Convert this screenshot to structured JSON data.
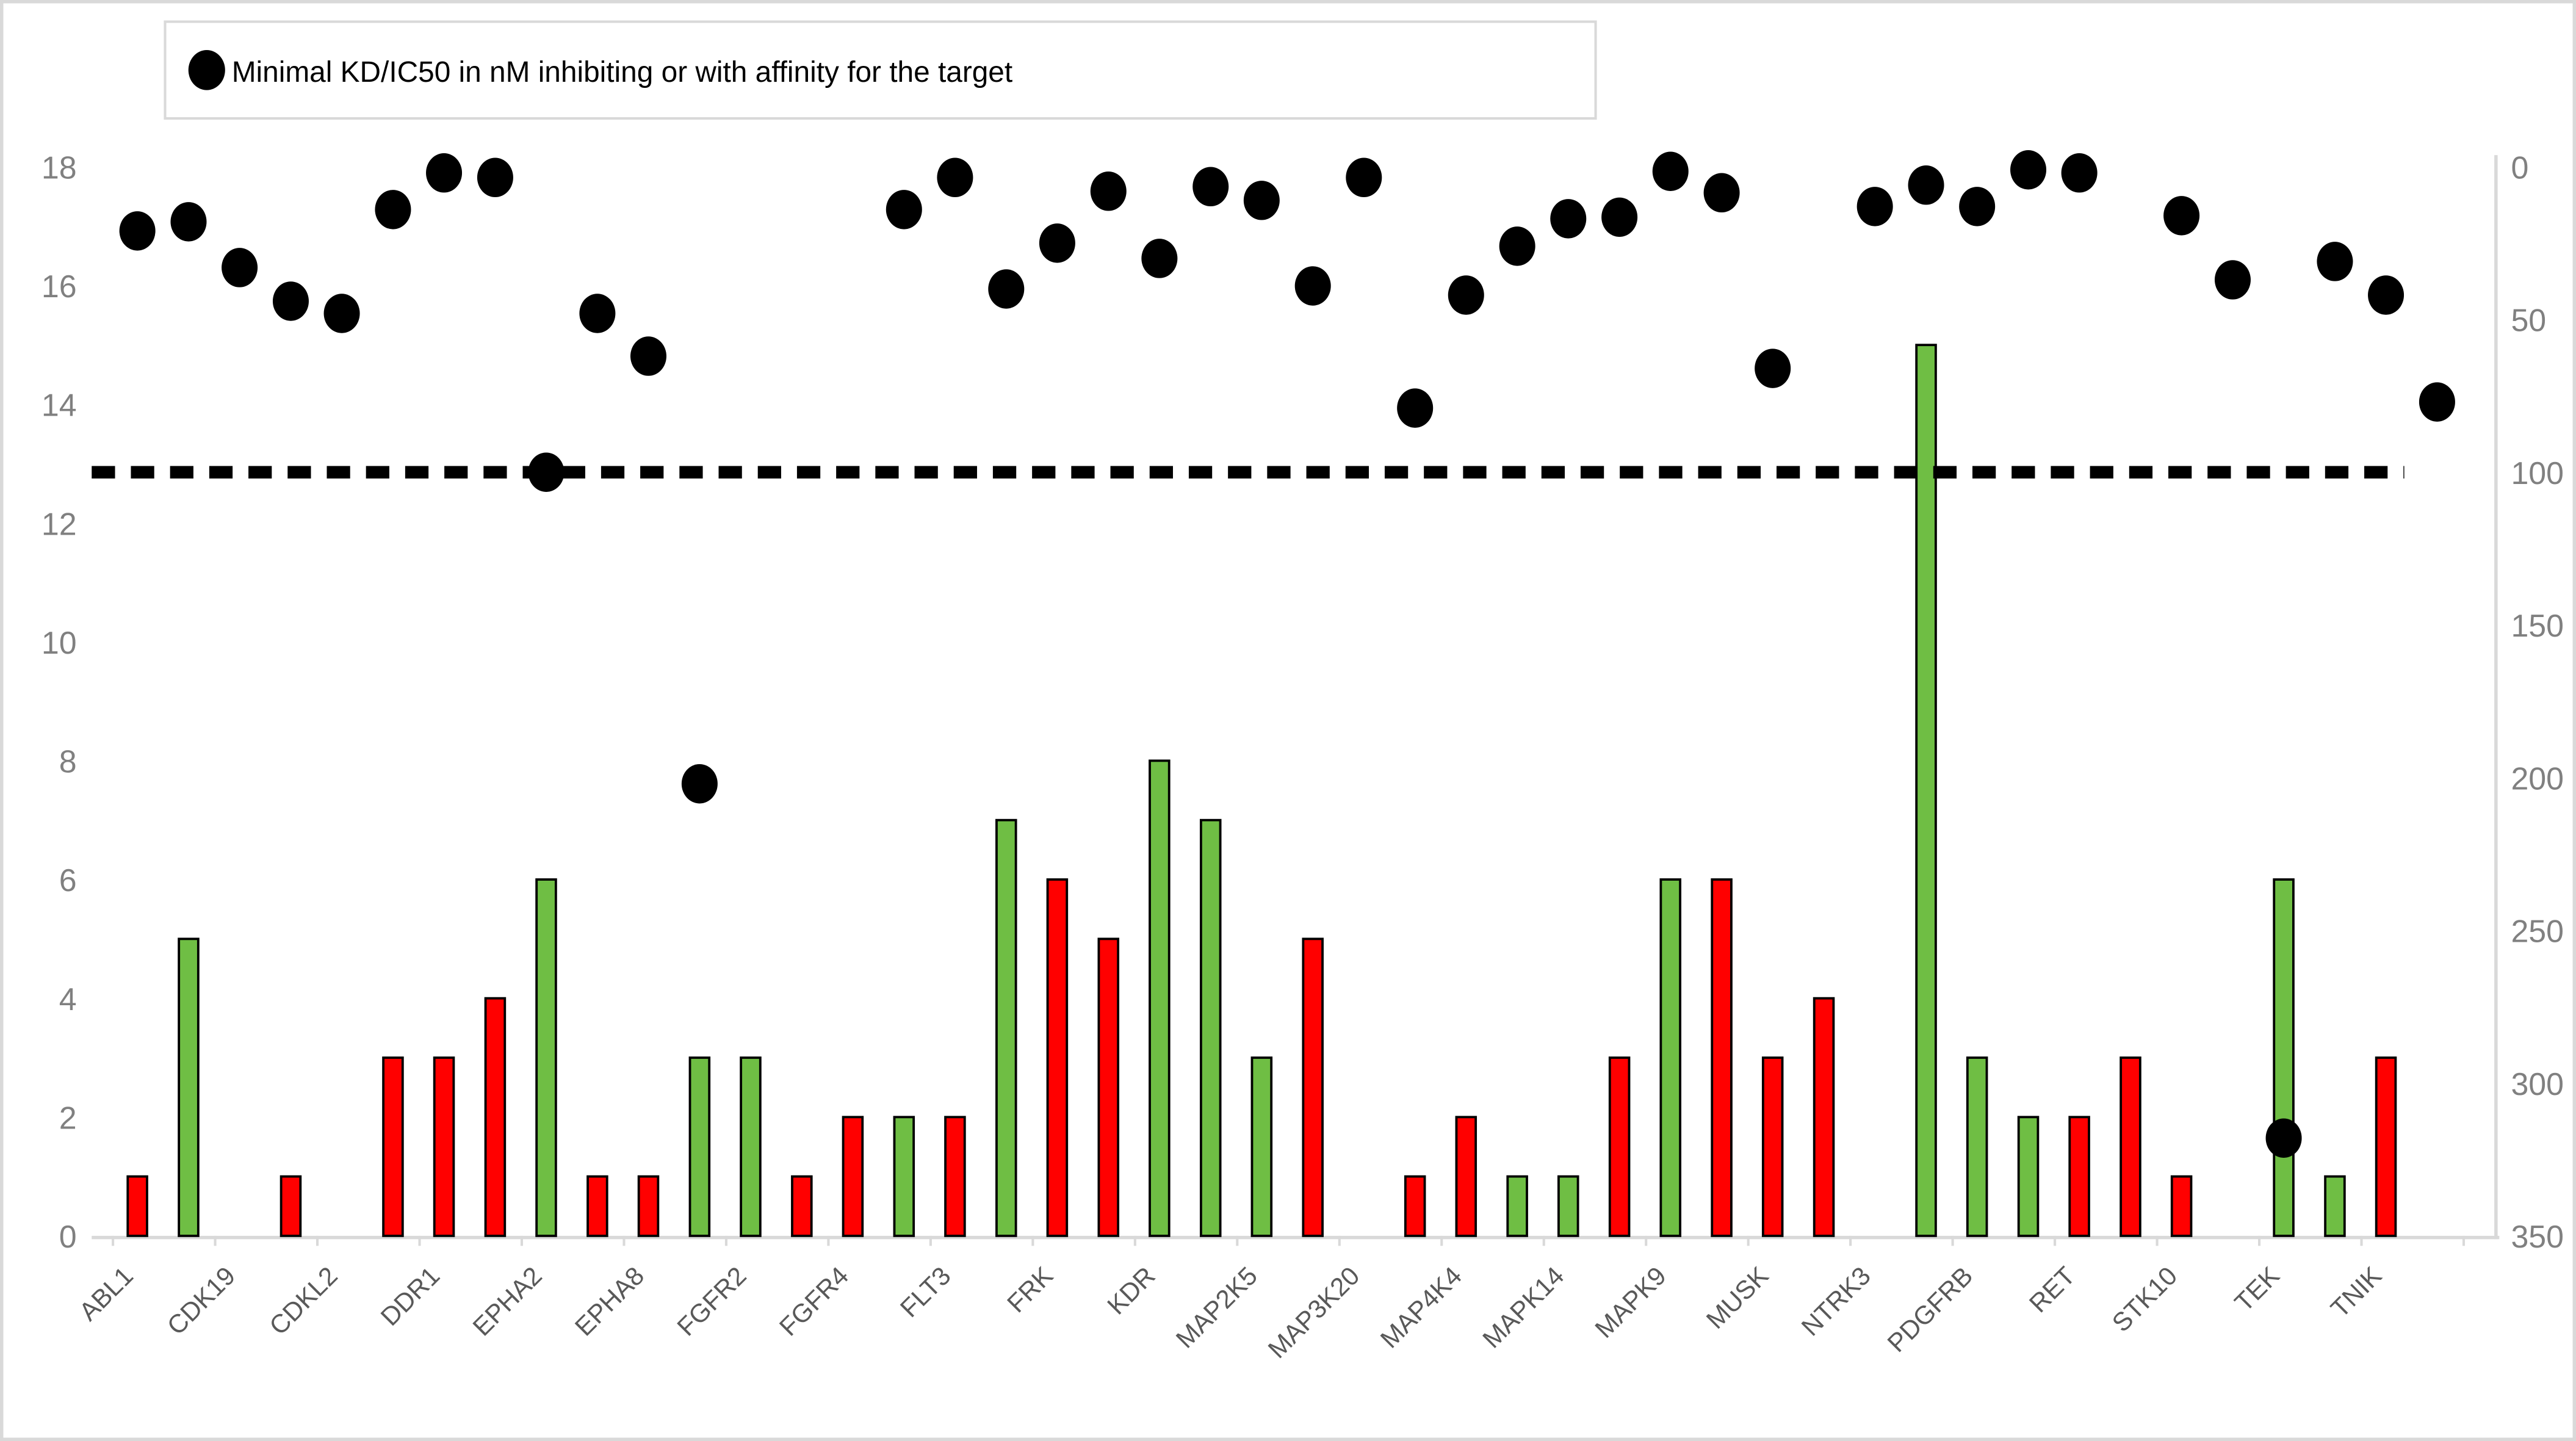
{
  "legend": {
    "marker": "filled-circle",
    "marker_color": "#000000",
    "label": "Minimal KD/IC50 in nM inhibiting or with affinity for  the target"
  },
  "left_axis": {
    "ticks": [
      "0",
      "2",
      "4",
      "6",
      "8",
      "10",
      "12",
      "14",
      "16",
      "18"
    ],
    "min": 0,
    "max": 18,
    "text_color": "#808080"
  },
  "right_axis": {
    "ticks": [
      "0",
      "50",
      "100",
      "150",
      "200",
      "250",
      "300",
      "350"
    ],
    "min": 0,
    "max": 350,
    "inverted": true,
    "text_color": "#808080"
  },
  "reference_line": {
    "value_nM": 100,
    "style": "dashed",
    "color": "#000000"
  },
  "colors": {
    "bar_red": "#FF0000",
    "bar_green": "#6FBE44",
    "bar_border": "#000000",
    "dot": "#000000",
    "axis_line": "#D9D9D9",
    "category_label": "#595959",
    "chart_border": "#D9D9D9"
  },
  "chart_data": {
    "type": "bar",
    "note": "clustered bars (left axis, 0-18) with overlaid scatter dots (right axis nM, 0 top - 350 bottom, inverted); dashed reference line at 100 nM",
    "categories": [
      "ABL1",
      "CDK19",
      "CDKL2",
      "DDR1",
      "EPHA2",
      "EPHA8",
      "FGFR2",
      "FGFR4",
      "FLT3",
      "FRK",
      "KDR",
      "MAP2K5",
      "MAP3K20",
      "MAP4K4",
      "MAPK14",
      "MAPK9",
      "MUSK",
      "NTRK3",
      "PDGFRB",
      "RET",
      "STK10",
      "TEK",
      "TNIK"
    ],
    "bars_slot1": [
      {
        "color": "red",
        "value": 1
      },
      null,
      null,
      {
        "color": "red",
        "value": 3
      },
      {
        "color": "green",
        "value": 6
      },
      {
        "color": "red",
        "value": 1
      },
      {
        "color": "green",
        "value": 3
      },
      {
        "color": "red",
        "value": 2
      },
      {
        "color": "red",
        "value": 2
      },
      {
        "color": "red",
        "value": 6
      },
      {
        "color": "green",
        "value": 8
      },
      {
        "color": "green",
        "value": 3
      },
      null,
      {
        "color": "red",
        "value": 2
      },
      {
        "color": "green",
        "value": 1
      },
      {
        "color": "green",
        "value": 6
      },
      {
        "color": "red",
        "value": 3
      },
      null,
      {
        "color": "green",
        "value": 3
      },
      {
        "color": "red",
        "value": 2
      },
      {
        "color": "red",
        "value": 1
      },
      {
        "color": "green",
        "value": 6
      },
      {
        "color": "red",
        "value": 3
      }
    ],
    "bars_slot2": [
      {
        "color": "green",
        "value": 5
      },
      {
        "color": "red",
        "value": 1
      },
      {
        "color": "red",
        "value": 3
      },
      {
        "color": "red",
        "value": 4
      },
      {
        "color": "red",
        "value": 1
      },
      {
        "color": "green",
        "value": 3
      },
      {
        "color": "red",
        "value": 1
      },
      {
        "color": "green",
        "value": 2
      },
      {
        "color": "green",
        "value": 7
      },
      {
        "color": "red",
        "value": 5
      },
      {
        "color": "green",
        "value": 7
      },
      {
        "color": "red",
        "value": 5
      },
      {
        "color": "red",
        "value": 1
      },
      {
        "color": "green",
        "value": 1
      },
      {
        "color": "red",
        "value": 3
      },
      {
        "color": "red",
        "value": 6
      },
      {
        "color": "red",
        "value": 4
      },
      {
        "color": "green",
        "value": 15
      },
      {
        "color": "green",
        "value": 2
      },
      {
        "color": "red",
        "value": 3
      },
      null,
      {
        "color": "green",
        "value": 1
      },
      null
    ],
    "dots_nM_slot1": [
      21,
      33,
      48,
      2,
      100,
      62,
      null,
      null,
      3.5,
      25,
      30,
      11,
      3.5,
      42,
      17,
      1.5,
      66,
      13,
      13,
      2,
      16,
      318,
      42
    ],
    "dots_nM_slot2": [
      18,
      44,
      14,
      3.5,
      48,
      202,
      null,
      14,
      40,
      8,
      6.5,
      39,
      79,
      26,
      16.5,
      8.5,
      null,
      6,
      1,
      null,
      37,
      31,
      77
    ]
  }
}
